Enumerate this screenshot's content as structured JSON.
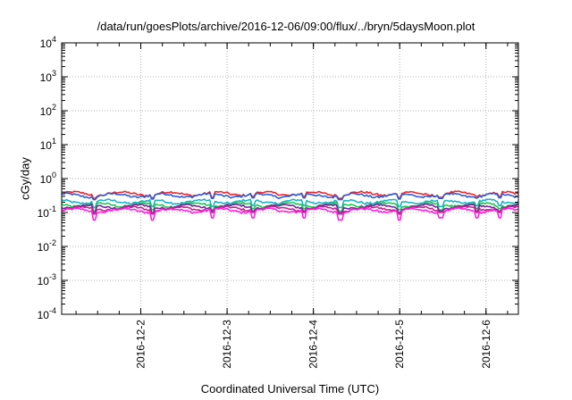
{
  "chart_data": {
    "type": "line",
    "title": "/data/run/goesPlots/archive/2016-12-06/09:00/flux/../bryn/5daysMoon.plot",
    "xlabel": "Coordinated Universal Time (UTC)",
    "ylabel": "cGy/day",
    "yscale": "log",
    "ylim": [
      0.0001,
      10000
    ],
    "y_ticks": [
      {
        "value": 0.0001,
        "base": "10",
        "exp": "-4"
      },
      {
        "value": 0.001,
        "base": "10",
        "exp": "-3"
      },
      {
        "value": 0.01,
        "base": "10",
        "exp": "-2"
      },
      {
        "value": 0.1,
        "base": "10",
        "exp": "-1"
      },
      {
        "value": 1,
        "base": "10",
        "exp": "0"
      },
      {
        "value": 10,
        "base": "10",
        "exp": "1"
      },
      {
        "value": 100,
        "base": "10",
        "exp": "2"
      },
      {
        "value": 1000,
        "base": "10",
        "exp": "3"
      },
      {
        "value": 10000,
        "base": "10",
        "exp": "4"
      }
    ],
    "xlim": [
      "2016-12-01 02:00",
      "2016-12-06 09:00"
    ],
    "x_ticks": [
      "2016-12-2",
      "2016-12-3",
      "2016-12-4",
      "2016-12-5",
      "2016-12-6"
    ],
    "grid": true,
    "legend": "none",
    "series": [
      {
        "color": "#e8272d",
        "baseline": 0.36,
        "dips": [
          0.26,
          0.27,
          0.28,
          0.3,
          0.3
        ]
      },
      {
        "color": "#2b5fd9",
        "baseline": 0.32,
        "dips": [
          0.24,
          0.25,
          0.26,
          0.27,
          0.27
        ]
      },
      {
        "color": "#19b2c8",
        "baseline": 0.21,
        "dips": [
          0.14,
          0.15,
          0.15,
          0.16,
          0.16
        ]
      },
      {
        "color": "#19c84a",
        "baseline": 0.17,
        "dips": [
          0.11,
          0.12,
          0.12,
          0.13,
          0.13
        ]
      },
      {
        "color": "#7a1fa2",
        "baseline": 0.15,
        "dips": [
          0.1,
          0.1,
          0.11,
          0.11,
          0.11
        ]
      },
      {
        "color": "#c8208c",
        "baseline": 0.13,
        "dips": [
          0.09,
          0.09,
          0.1,
          0.1,
          0.1
        ]
      },
      {
        "color": "#ff1fe0",
        "baseline": 0.115,
        "dips": [
          0.06,
          0.06,
          0.07,
          0.07,
          0.07
        ]
      }
    ]
  }
}
